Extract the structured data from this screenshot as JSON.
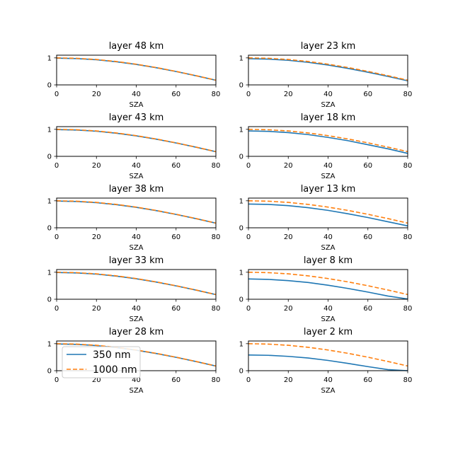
{
  "figure": {
    "legend": {
      "entries": [
        {
          "label": "350 nm",
          "color": "#1f77b4",
          "style": "solid"
        },
        {
          "label": "1000 nm",
          "color": "#ff7f0e",
          "style": "dashed"
        }
      ],
      "location": "lower-left of bottom-left subplot"
    }
  },
  "chart_data": [
    {
      "type": "line",
      "title": "layer 48 km",
      "xlabel": "SZA",
      "ylabel": "",
      "xlim": [
        0,
        80
      ],
      "ylim": [
        0,
        1.1
      ],
      "xticks": [
        "0",
        "20",
        "40",
        "60",
        "80"
      ],
      "yticks": [
        "0",
        "1"
      ],
      "x": [
        0,
        10,
        20,
        30,
        40,
        50,
        60,
        70,
        80
      ],
      "series": [
        {
          "name": "350 nm",
          "values": [
            0.99,
            0.975,
            0.93,
            0.857,
            0.758,
            0.636,
            0.495,
            0.339,
            0.172
          ]
        },
        {
          "name": "1000 nm",
          "values": [
            1.0,
            0.985,
            0.94,
            0.866,
            0.766,
            0.643,
            0.5,
            0.342,
            0.174
          ]
        }
      ]
    },
    {
      "type": "line",
      "title": "layer 23 km",
      "xlabel": "SZA",
      "ylabel": "",
      "xlim": [
        0,
        80
      ],
      "ylim": [
        0,
        1.1
      ],
      "xticks": [
        "0",
        "20",
        "40",
        "60",
        "80"
      ],
      "yticks": [
        "0",
        "1"
      ],
      "x": [
        0,
        10,
        20,
        30,
        40,
        50,
        60,
        70,
        80
      ],
      "series": [
        {
          "name": "350 nm",
          "values": [
            0.97,
            0.955,
            0.91,
            0.835,
            0.735,
            0.61,
            0.47,
            0.315,
            0.15
          ]
        },
        {
          "name": "1000 nm",
          "values": [
            1.0,
            0.985,
            0.94,
            0.866,
            0.766,
            0.643,
            0.5,
            0.342,
            0.174
          ]
        }
      ]
    },
    {
      "type": "line",
      "title": "layer 43 km",
      "xlabel": "SZA",
      "ylabel": "",
      "xlim": [
        0,
        80
      ],
      "ylim": [
        0,
        1.1
      ],
      "xticks": [
        "0",
        "20",
        "40",
        "60",
        "80"
      ],
      "yticks": [
        "0",
        "1"
      ],
      "x": [
        0,
        10,
        20,
        30,
        40,
        50,
        60,
        70,
        80
      ],
      "series": [
        {
          "name": "350 nm",
          "values": [
            0.99,
            0.975,
            0.93,
            0.857,
            0.758,
            0.636,
            0.495,
            0.339,
            0.172
          ]
        },
        {
          "name": "1000 nm",
          "values": [
            1.0,
            0.985,
            0.94,
            0.866,
            0.766,
            0.643,
            0.5,
            0.342,
            0.174
          ]
        }
      ]
    },
    {
      "type": "line",
      "title": "layer 18 km",
      "xlabel": "SZA",
      "ylabel": "",
      "xlim": [
        0,
        80
      ],
      "ylim": [
        0,
        1.1
      ],
      "xticks": [
        "0",
        "20",
        "40",
        "60",
        "80"
      ],
      "yticks": [
        "0",
        "1"
      ],
      "x": [
        0,
        10,
        20,
        30,
        40,
        50,
        60,
        70,
        80
      ],
      "series": [
        {
          "name": "350 nm",
          "values": [
            0.94,
            0.925,
            0.88,
            0.805,
            0.7,
            0.58,
            0.43,
            0.28,
            0.11
          ]
        },
        {
          "name": "1000 nm",
          "values": [
            1.0,
            0.985,
            0.94,
            0.866,
            0.766,
            0.643,
            0.5,
            0.342,
            0.174
          ]
        }
      ]
    },
    {
      "type": "line",
      "title": "layer 38 km",
      "xlabel": "SZA",
      "ylabel": "",
      "xlim": [
        0,
        80
      ],
      "ylim": [
        0,
        1.1
      ],
      "xticks": [
        "0",
        "20",
        "40",
        "60",
        "80"
      ],
      "yticks": [
        "0",
        "1"
      ],
      "x": [
        0,
        10,
        20,
        30,
        40,
        50,
        60,
        70,
        80
      ],
      "series": [
        {
          "name": "350 nm",
          "values": [
            0.99,
            0.975,
            0.93,
            0.857,
            0.758,
            0.636,
            0.495,
            0.339,
            0.172
          ]
        },
        {
          "name": "1000 nm",
          "values": [
            1.0,
            0.985,
            0.94,
            0.866,
            0.766,
            0.643,
            0.5,
            0.342,
            0.174
          ]
        }
      ]
    },
    {
      "type": "line",
      "title": "layer 13 km",
      "xlabel": "SZA",
      "ylabel": "",
      "xlim": [
        0,
        80
      ],
      "ylim": [
        0,
        1.1
      ],
      "xticks": [
        "0",
        "20",
        "40",
        "60",
        "80"
      ],
      "yticks": [
        "0",
        "1"
      ],
      "x": [
        0,
        10,
        20,
        30,
        40,
        50,
        60,
        70,
        80
      ],
      "series": [
        {
          "name": "350 nm",
          "values": [
            0.88,
            0.865,
            0.82,
            0.745,
            0.645,
            0.52,
            0.38,
            0.225,
            0.07
          ]
        },
        {
          "name": "1000 nm",
          "values": [
            1.0,
            0.985,
            0.94,
            0.866,
            0.766,
            0.643,
            0.5,
            0.342,
            0.174
          ]
        }
      ]
    },
    {
      "type": "line",
      "title": "layer 33 km",
      "xlabel": "SZA",
      "ylabel": "",
      "xlim": [
        0,
        80
      ],
      "ylim": [
        0,
        1.1
      ],
      "xticks": [
        "0",
        "20",
        "40",
        "60",
        "80"
      ],
      "yticks": [
        "0",
        "1"
      ],
      "x": [
        0,
        10,
        20,
        30,
        40,
        50,
        60,
        70,
        80
      ],
      "series": [
        {
          "name": "350 nm",
          "values": [
            0.99,
            0.975,
            0.93,
            0.857,
            0.758,
            0.636,
            0.495,
            0.339,
            0.172
          ]
        },
        {
          "name": "1000 nm",
          "values": [
            1.0,
            0.985,
            0.94,
            0.866,
            0.766,
            0.643,
            0.5,
            0.342,
            0.174
          ]
        }
      ]
    },
    {
      "type": "line",
      "title": "layer 8 km",
      "xlabel": "SZA",
      "ylabel": "",
      "xlim": [
        0,
        80
      ],
      "ylim": [
        0,
        1.1
      ],
      "xticks": [
        "0",
        "20",
        "40",
        "60",
        "80"
      ],
      "yticks": [
        "0",
        "1"
      ],
      "x": [
        0,
        10,
        20,
        30,
        40,
        50,
        60,
        70,
        80
      ],
      "series": [
        {
          "name": "350 nm",
          "values": [
            0.75,
            0.735,
            0.69,
            0.62,
            0.52,
            0.4,
            0.265,
            0.12,
            0.01
          ]
        },
        {
          "name": "1000 nm",
          "values": [
            1.0,
            0.985,
            0.94,
            0.866,
            0.766,
            0.643,
            0.5,
            0.342,
            0.174
          ]
        }
      ]
    },
    {
      "type": "line",
      "title": "layer 28 km",
      "xlabel": "SZA",
      "ylabel": "",
      "xlim": [
        0,
        80
      ],
      "ylim": [
        0,
        1.1
      ],
      "xticks": [
        "0",
        "20",
        "40",
        "60",
        "80"
      ],
      "yticks": [
        "0",
        "1"
      ],
      "x": [
        0,
        10,
        20,
        30,
        40,
        50,
        60,
        70,
        80
      ],
      "series": [
        {
          "name": "350 nm",
          "values": [
            0.99,
            0.975,
            0.93,
            0.857,
            0.758,
            0.636,
            0.495,
            0.339,
            0.172
          ]
        },
        {
          "name": "1000 nm",
          "values": [
            1.0,
            0.985,
            0.94,
            0.866,
            0.766,
            0.643,
            0.5,
            0.342,
            0.174
          ]
        }
      ]
    },
    {
      "type": "line",
      "title": "layer 2 km",
      "xlabel": "SZA",
      "ylabel": "",
      "xlim": [
        0,
        80
      ],
      "ylim": [
        0,
        1.1
      ],
      "xticks": [
        "0",
        "20",
        "40",
        "60",
        "80"
      ],
      "yticks": [
        "0",
        "1"
      ],
      "x": [
        0,
        10,
        20,
        30,
        40,
        50,
        60,
        70,
        80
      ],
      "series": [
        {
          "name": "350 nm",
          "values": [
            0.58,
            0.57,
            0.53,
            0.47,
            0.38,
            0.27,
            0.15,
            0.04,
            0.0
          ]
        },
        {
          "name": "1000 nm",
          "values": [
            1.0,
            0.985,
            0.94,
            0.866,
            0.766,
            0.643,
            0.5,
            0.342,
            0.174
          ]
        }
      ]
    }
  ]
}
